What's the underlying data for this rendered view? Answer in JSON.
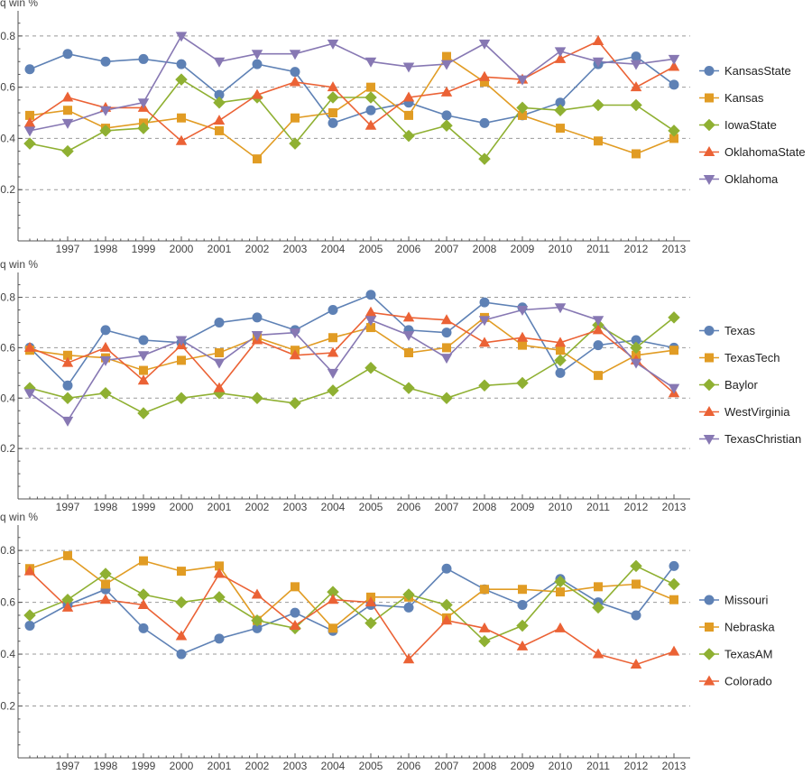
{
  "chart_data": [
    {
      "type": "line",
      "ylabel": "q win %",
      "ylim": [
        0,
        0.87
      ],
      "yticks": [
        0.2,
        0.4,
        0.6,
        0.8
      ],
      "ytick_labels": [
        "0.2",
        "0.4",
        "0.6",
        "0.8"
      ],
      "x": [
        1996,
        1997,
        1998,
        1999,
        2000,
        2001,
        2002,
        2003,
        2004,
        2005,
        2006,
        2007,
        2008,
        2009,
        2010,
        2011,
        2012,
        2013
      ],
      "xtick_labels": [
        "1997",
        "1998",
        "1999",
        "2000",
        "2001",
        "2002",
        "2003",
        "2004",
        "2005",
        "2006",
        "2007",
        "2008",
        "2009",
        "2010",
        "2011",
        "2012",
        "2013"
      ],
      "grid": "horizontal dashed",
      "legend_position": "right",
      "series": [
        {
          "name": "KansasState",
          "color": "#5E81B5",
          "marker": "circle",
          "values": [
            0.67,
            0.73,
            0.7,
            0.71,
            0.69,
            0.57,
            0.69,
            0.66,
            0.46,
            0.51,
            0.54,
            0.49,
            0.46,
            0.49,
            0.54,
            0.69,
            0.72,
            0.61
          ]
        },
        {
          "name": "Kansas",
          "color": "#E19C24",
          "marker": "square",
          "values": [
            0.49,
            0.51,
            0.44,
            0.46,
            0.48,
            0.43,
            0.32,
            0.48,
            0.5,
            0.6,
            0.49,
            0.72,
            0.62,
            0.49,
            0.44,
            0.39,
            0.34,
            0.4
          ]
        },
        {
          "name": "IowaState",
          "color": "#8FB032",
          "marker": "diamond",
          "values": [
            0.38,
            0.35,
            0.43,
            0.44,
            0.63,
            0.54,
            0.56,
            0.38,
            0.56,
            0.56,
            0.41,
            0.45,
            0.32,
            0.52,
            0.51,
            0.53,
            0.53,
            0.43
          ]
        },
        {
          "name": "OklahomaState",
          "color": "#EB6235",
          "marker": "triangle-up",
          "values": [
            0.46,
            0.56,
            0.52,
            0.52,
            0.39,
            0.47,
            0.57,
            0.62,
            0.6,
            0.45,
            0.56,
            0.58,
            0.64,
            0.63,
            0.71,
            0.78,
            0.6,
            0.68
          ]
        },
        {
          "name": "Oklahoma",
          "color": "#8778B3",
          "marker": "triangle-down",
          "values": [
            0.43,
            0.46,
            0.51,
            0.54,
            0.8,
            0.7,
            0.73,
            0.73,
            0.77,
            0.7,
            0.68,
            0.69,
            0.77,
            0.63,
            0.74,
            0.7,
            0.69,
            0.71
          ]
        }
      ]
    },
    {
      "type": "line",
      "ylabel": "q win %",
      "ylim": [
        0,
        0.87
      ],
      "yticks": [
        0.2,
        0.4,
        0.6,
        0.8
      ],
      "ytick_labels": [
        "0.2",
        "0.4",
        "0.6",
        "0.8"
      ],
      "x": [
        1996,
        1997,
        1998,
        1999,
        2000,
        2001,
        2002,
        2003,
        2004,
        2005,
        2006,
        2007,
        2008,
        2009,
        2010,
        2011,
        2012,
        2013
      ],
      "xtick_labels": [
        "1997",
        "1998",
        "1999",
        "2000",
        "2001",
        "2002",
        "2003",
        "2004",
        "2005",
        "2006",
        "2007",
        "2008",
        "2009",
        "2010",
        "2011",
        "2012",
        "2013"
      ],
      "grid": "horizontal dashed",
      "legend_position": "right",
      "series": [
        {
          "name": "Texas",
          "color": "#5E81B5",
          "marker": "circle",
          "values": [
            0.6,
            0.45,
            0.67,
            0.63,
            0.62,
            0.7,
            0.72,
            0.67,
            0.75,
            0.81,
            0.67,
            0.66,
            0.78,
            0.76,
            0.5,
            0.61,
            0.63,
            0.6
          ]
        },
        {
          "name": "TexasTech",
          "color": "#E19C24",
          "marker": "square",
          "values": [
            0.59,
            0.57,
            0.56,
            0.51,
            0.55,
            0.58,
            0.64,
            0.59,
            0.64,
            0.68,
            0.58,
            0.6,
            0.72,
            0.61,
            0.59,
            0.49,
            0.57,
            0.59
          ]
        },
        {
          "name": "Baylor",
          "color": "#8FB032",
          "marker": "diamond",
          "values": [
            0.44,
            0.4,
            0.42,
            0.34,
            0.4,
            0.42,
            0.4,
            0.38,
            0.43,
            0.52,
            0.44,
            0.4,
            0.45,
            0.46,
            0.55,
            0.69,
            0.6,
            0.72
          ]
        },
        {
          "name": "WestVirginia",
          "color": "#EB6235",
          "marker": "triangle-up",
          "values": [
            0.6,
            0.54,
            0.6,
            0.47,
            0.61,
            0.44,
            0.63,
            0.57,
            0.58,
            0.74,
            0.72,
            0.71,
            0.62,
            0.64,
            0.62,
            0.67,
            0.55,
            0.42
          ]
        },
        {
          "name": "TexasChristian",
          "color": "#8778B3",
          "marker": "triangle-down",
          "values": [
            0.42,
            0.31,
            0.55,
            0.57,
            0.63,
            0.54,
            0.65,
            0.66,
            0.5,
            0.71,
            0.65,
            0.56,
            0.71,
            0.75,
            0.76,
            0.71,
            0.54,
            0.44
          ]
        }
      ]
    },
    {
      "type": "line",
      "ylabel": "q win %",
      "ylim": [
        0,
        0.87
      ],
      "yticks": [
        0.2,
        0.4,
        0.6,
        0.8
      ],
      "ytick_labels": [
        "0.2",
        "0.4",
        "0.6",
        "0.8"
      ],
      "x": [
        1996,
        1997,
        1998,
        1999,
        2000,
        2001,
        2002,
        2003,
        2004,
        2005,
        2006,
        2007,
        2008,
        2009,
        2010,
        2011,
        2012,
        2013
      ],
      "xtick_labels": [
        "1997",
        "1998",
        "1999",
        "2000",
        "2001",
        "2002",
        "2003",
        "2004",
        "2005",
        "2006",
        "2007",
        "2008",
        "2009",
        "2010",
        "2011",
        "2012",
        "2013"
      ],
      "grid": "horizontal dashed",
      "legend_position": "right",
      "series": [
        {
          "name": "Missouri",
          "color": "#5E81B5",
          "marker": "circle",
          "values": [
            0.51,
            0.59,
            0.65,
            0.5,
            0.4,
            0.46,
            0.5,
            0.56,
            0.49,
            0.59,
            0.58,
            0.73,
            0.65,
            0.59,
            0.69,
            0.6,
            0.55,
            0.74
          ]
        },
        {
          "name": "Nebraska",
          "color": "#E19C24",
          "marker": "square",
          "values": [
            0.73,
            0.78,
            0.67,
            0.76,
            0.72,
            0.74,
            0.53,
            0.66,
            0.5,
            0.62,
            0.62,
            0.54,
            0.65,
            0.65,
            0.64,
            0.66,
            0.67,
            0.61
          ]
        },
        {
          "name": "TexasAM",
          "color": "#8FB032",
          "marker": "diamond",
          "values": [
            0.55,
            0.61,
            0.71,
            0.63,
            0.6,
            0.62,
            0.53,
            0.5,
            0.64,
            0.52,
            0.63,
            0.59,
            0.45,
            0.51,
            0.68,
            0.58,
            0.74,
            0.67
          ]
        },
        {
          "name": "Colorado",
          "color": "#EB6235",
          "marker": "triangle-up",
          "values": [
            0.72,
            0.58,
            0.61,
            0.59,
            0.47,
            0.71,
            0.63,
            0.51,
            0.61,
            0.6,
            0.38,
            0.53,
            0.5,
            0.43,
            0.5,
            0.4,
            0.36,
            0.41
          ]
        }
      ]
    }
  ]
}
